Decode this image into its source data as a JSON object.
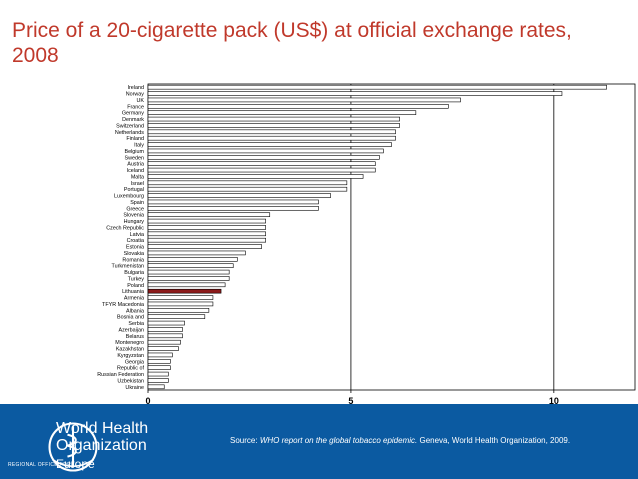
{
  "title": "Price of a 20-cigarette pack (US$) at official exchange rates, 2008",
  "source": {
    "prefix": "Source:",
    "italic": "WHO report on the global tobacco epidemic.",
    "rest": "Geneva, World Health Organization, 2009."
  },
  "footer": {
    "org_line1": "World Health",
    "org_line2": "Organization",
    "region_label": "REGIONAL OFFICE FOR",
    "region": "Europe"
  },
  "colors": {
    "title": "#c0392b",
    "bar": "#ffffff",
    "highlight": "#8b1a1a",
    "footer": "#0b5aa1"
  },
  "chart_data": {
    "type": "bar",
    "orientation": "horizontal",
    "title": "Price of a 20-cigarette pack (US$) at official exchange rates, 2008",
    "xlabel": "",
    "ylabel": "",
    "xlim": [
      0,
      12
    ],
    "xticks": [
      0,
      5,
      10
    ],
    "highlight": "Lithuania",
    "categories": [
      "Ireland",
      "Norway",
      "UK",
      "France",
      "Germany",
      "Denmark",
      "Switzerland",
      "Netherlands",
      "Finland",
      "Italy",
      "Belgium",
      "Sweden",
      "Austria",
      "Iceland",
      "Malta",
      "Israel",
      "Portugal",
      "Luxembourg",
      "Spain",
      "Greece",
      "Slovenia",
      "Hungary",
      "Czech Republic",
      "Latvia",
      "Croatia",
      "Estonia",
      "Slovakia",
      "Romania",
      "Turkmenistan",
      "Bulgaria",
      "Turkey",
      "Poland",
      "Lithuania",
      "Armenia",
      "TFYR Macedonia",
      "Albania",
      "Bosnia and",
      "Serbia",
      "Azerbaijan",
      "Belarus",
      "Montenegro",
      "Kazakhstan",
      "Kyrgyzstan",
      "Georgia",
      "Republic of",
      "Russian Federation",
      "Uzbekistan",
      "Ukraine"
    ],
    "values": [
      11.3,
      10.2,
      7.7,
      7.4,
      6.6,
      6.2,
      6.2,
      6.1,
      6.1,
      6.0,
      5.8,
      5.7,
      5.6,
      5.6,
      5.3,
      4.9,
      4.9,
      4.5,
      4.2,
      4.2,
      3.0,
      2.9,
      2.9,
      2.9,
      2.9,
      2.8,
      2.4,
      2.2,
      2.1,
      2.0,
      2.0,
      1.9,
      1.8,
      1.6,
      1.6,
      1.5,
      1.4,
      0.9,
      0.85,
      0.85,
      0.8,
      0.75,
      0.6,
      0.55,
      0.55,
      0.5,
      0.5,
      0.4
    ]
  }
}
